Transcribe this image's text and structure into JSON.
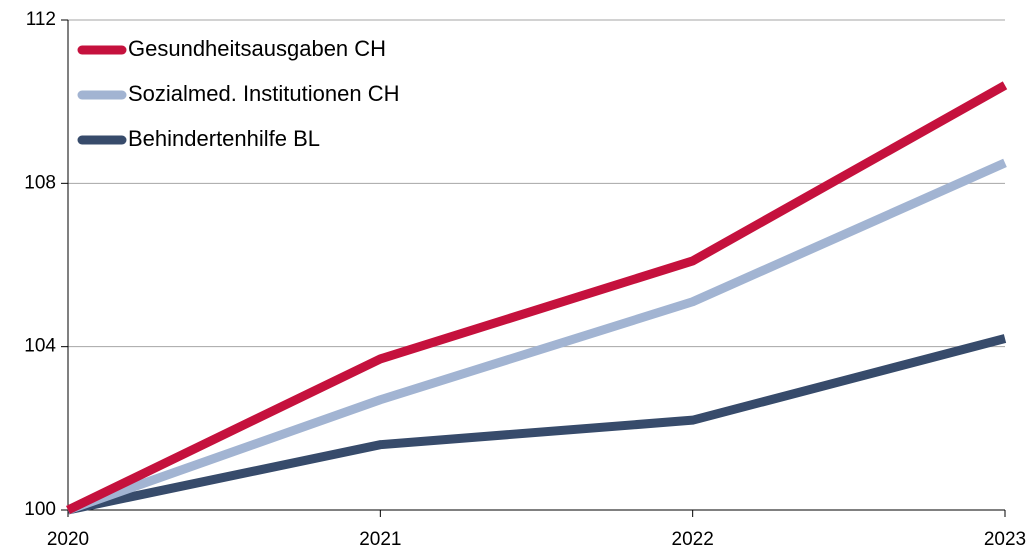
{
  "chart_data": {
    "type": "line",
    "x": [
      2020,
      2021,
      2022,
      2023
    ],
    "xlim": [
      2020,
      2023
    ],
    "xticks": [
      2020,
      2021,
      2022,
      2023
    ],
    "ylim": [
      100,
      112
    ],
    "yticks": [
      100,
      104,
      108,
      112
    ],
    "grid": true,
    "legend": "upper left",
    "series": [
      {
        "name": "Gesundheitsausgaben CH",
        "color": "#c5113d",
        "values": [
          100,
          103.7,
          106.1,
          110.4
        ]
      },
      {
        "name": "Sozialmed. Institutionen CH",
        "color": "#a2b4d2",
        "values": [
          100,
          102.7,
          105.1,
          108.5
        ]
      },
      {
        "name": "Behindertenhilfe BL",
        "color": "#374b6b",
        "values": [
          100,
          101.6,
          102.2,
          104.2
        ]
      }
    ]
  }
}
